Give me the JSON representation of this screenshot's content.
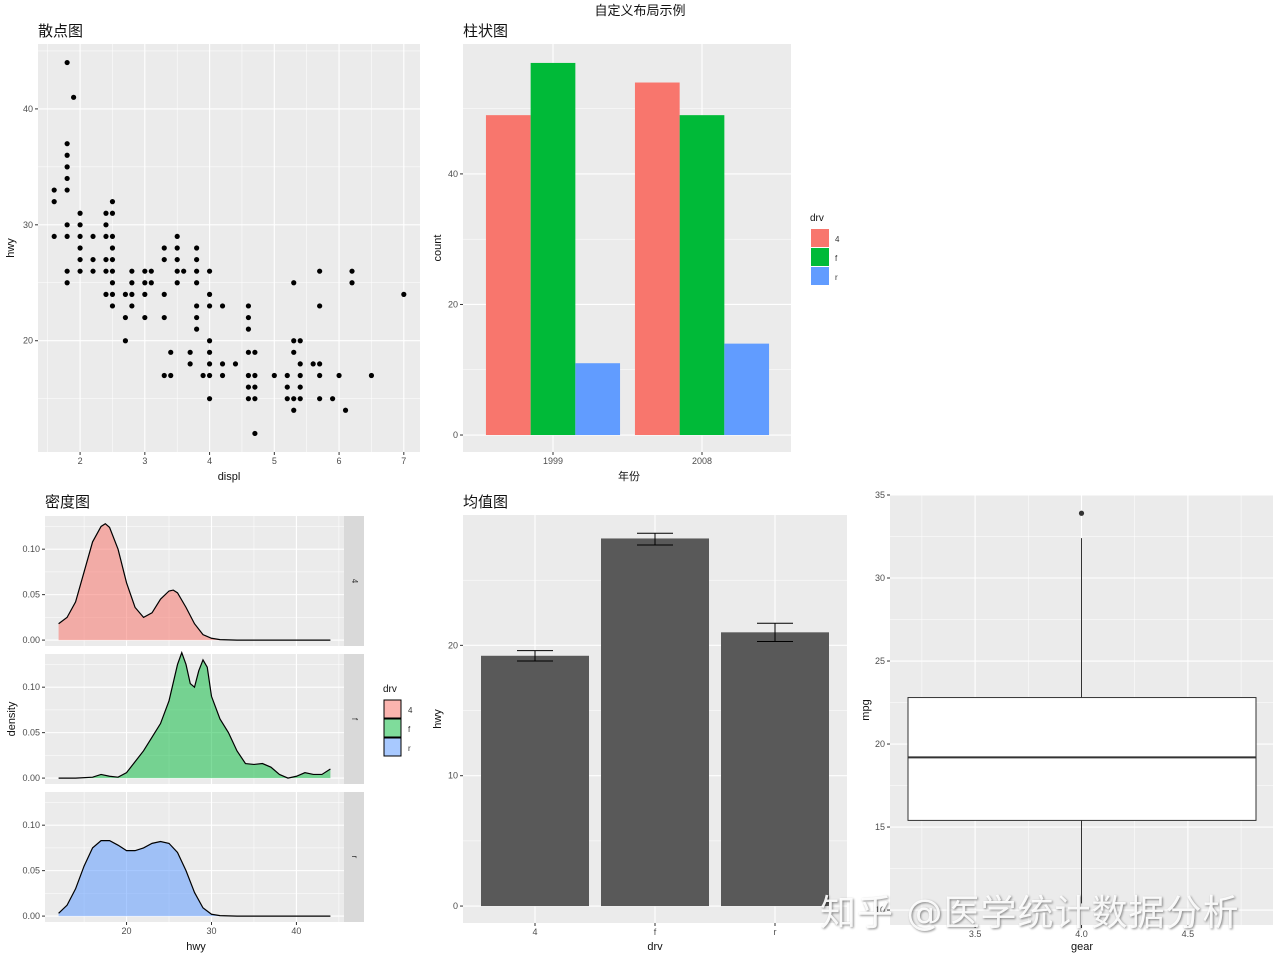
{
  "title": "自定义布局示例",
  "watermark": "知乎 @医学统计数据分析",
  "colors": {
    "panel_bg": "#EBEBEB",
    "grid": "#FFFFFF",
    "drv_4": "#F8766D",
    "drv_f": "#00BA38",
    "drv_r": "#619CFF",
    "mean_bar": "#595959",
    "strip_bg": "#D9D9D9"
  },
  "chart_data": [
    {
      "id": "scatter",
      "type": "scatter",
      "title": "散点图",
      "xlabel": "displ",
      "ylabel": "hwy",
      "xticks": [
        2,
        3,
        4,
        5,
        6,
        7
      ],
      "yticks": [
        20,
        30,
        40
      ],
      "xlim": [
        1.35,
        7.25
      ],
      "ylim": [
        10.4,
        45.6
      ],
      "grid": true,
      "points": [
        [
          1.8,
          44
        ],
        [
          1.9,
          41
        ],
        [
          1.8,
          37
        ],
        [
          1.8,
          36
        ],
        [
          1.8,
          35
        ],
        [
          1.8,
          34
        ],
        [
          1.8,
          33
        ],
        [
          1.6,
          33
        ],
        [
          1.6,
          32
        ],
        [
          2.5,
          32
        ],
        [
          2.0,
          31
        ],
        [
          2.4,
          31
        ],
        [
          2.5,
          31
        ],
        [
          1.8,
          30
        ],
        [
          2.0,
          30
        ],
        [
          2.4,
          30
        ],
        [
          1.6,
          29
        ],
        [
          1.8,
          29
        ],
        [
          2.0,
          29
        ],
        [
          2.2,
          29
        ],
        [
          2.4,
          29
        ],
        [
          2.5,
          29
        ],
        [
          3.5,
          29
        ],
        [
          2.0,
          28
        ],
        [
          2.5,
          28
        ],
        [
          3.3,
          28
        ],
        [
          3.5,
          28
        ],
        [
          3.8,
          28
        ],
        [
          2.0,
          27
        ],
        [
          2.2,
          27
        ],
        [
          2.4,
          27
        ],
        [
          2.5,
          27
        ],
        [
          3.3,
          27
        ],
        [
          3.5,
          27
        ],
        [
          3.8,
          27
        ],
        [
          1.8,
          26
        ],
        [
          2.0,
          26
        ],
        [
          2.2,
          26
        ],
        [
          2.4,
          26
        ],
        [
          2.5,
          26
        ],
        [
          2.8,
          26
        ],
        [
          3.0,
          26
        ],
        [
          3.1,
          26
        ],
        [
          3.5,
          26
        ],
        [
          3.6,
          26
        ],
        [
          3.8,
          26
        ],
        [
          4.0,
          26
        ],
        [
          5.7,
          26
        ],
        [
          6.2,
          26
        ],
        [
          1.8,
          25
        ],
        [
          2.5,
          25
        ],
        [
          2.8,
          25
        ],
        [
          3.0,
          25
        ],
        [
          3.1,
          25
        ],
        [
          3.5,
          25
        ],
        [
          3.8,
          25
        ],
        [
          5.3,
          25
        ],
        [
          6.2,
          25
        ],
        [
          2.4,
          24
        ],
        [
          2.5,
          24
        ],
        [
          2.7,
          24
        ],
        [
          2.8,
          24
        ],
        [
          3.0,
          24
        ],
        [
          3.3,
          24
        ],
        [
          4.0,
          24
        ],
        [
          7.0,
          24
        ],
        [
          2.5,
          23
        ],
        [
          2.8,
          23
        ],
        [
          3.8,
          23
        ],
        [
          4.0,
          23
        ],
        [
          4.2,
          23
        ],
        [
          4.6,
          23
        ],
        [
          5.7,
          23
        ],
        [
          2.7,
          22
        ],
        [
          3.0,
          22
        ],
        [
          3.3,
          22
        ],
        [
          3.8,
          22
        ],
        [
          4.6,
          22
        ],
        [
          3.8,
          21
        ],
        [
          4.6,
          21
        ],
        [
          2.7,
          20
        ],
        [
          4.0,
          20
        ],
        [
          5.3,
          20
        ],
        [
          5.4,
          20
        ],
        [
          3.4,
          19
        ],
        [
          3.7,
          19
        ],
        [
          4.0,
          19
        ],
        [
          4.6,
          19
        ],
        [
          4.7,
          19
        ],
        [
          5.3,
          19
        ],
        [
          3.7,
          18
        ],
        [
          4.0,
          18
        ],
        [
          4.2,
          18
        ],
        [
          4.4,
          18
        ],
        [
          5.4,
          18
        ],
        [
          5.6,
          18
        ],
        [
          5.7,
          18
        ],
        [
          3.3,
          17
        ],
        [
          3.4,
          17
        ],
        [
          3.9,
          17
        ],
        [
          4.0,
          17
        ],
        [
          4.2,
          17
        ],
        [
          4.6,
          17
        ],
        [
          4.7,
          17
        ],
        [
          5.0,
          17
        ],
        [
          5.2,
          17
        ],
        [
          5.4,
          17
        ],
        [
          5.7,
          17
        ],
        [
          6.0,
          17
        ],
        [
          6.5,
          17
        ],
        [
          4.6,
          16
        ],
        [
          4.7,
          16
        ],
        [
          5.2,
          16
        ],
        [
          5.4,
          16
        ],
        [
          4.0,
          15
        ],
        [
          4.6,
          15
        ],
        [
          4.7,
          15
        ],
        [
          5.2,
          15
        ],
        [
          5.3,
          15
        ],
        [
          5.4,
          15
        ],
        [
          5.7,
          15
        ],
        [
          5.9,
          15
        ],
        [
          5.3,
          14
        ],
        [
          6.1,
          14
        ],
        [
          4.7,
          12
        ]
      ]
    },
    {
      "id": "bar",
      "type": "bar",
      "title": "柱状图",
      "xlabel": "年份",
      "ylabel": "count",
      "categories": [
        "1999",
        "2008"
      ],
      "yticks": [
        0,
        20,
        40
      ],
      "ylim": [
        -2.6,
        59.9
      ],
      "legend": {
        "title": "drv",
        "position": "right",
        "entries": [
          "4",
          "f",
          "r"
        ]
      },
      "series": [
        {
          "name": "4",
          "values": [
            49,
            54
          ]
        },
        {
          "name": "f",
          "values": [
            57,
            49
          ]
        },
        {
          "name": "r",
          "values": [
            11,
            14
          ]
        }
      ]
    },
    {
      "id": "density",
      "type": "area",
      "title": "密度图",
      "xlabel": "hwy",
      "ylabel": "density",
      "xticks": [
        20,
        30,
        40
      ],
      "yticks": [
        0.0,
        0.05,
        0.1
      ],
      "ytick_labels": [
        "0.00",
        "0.05",
        "0.10"
      ],
      "xlim": [
        10.4,
        45.6
      ],
      "ylim": [
        -0.0065,
        0.1365
      ],
      "facets": [
        "4",
        "f",
        "r"
      ],
      "legend": {
        "title": "drv",
        "position": "right",
        "entries": [
          "4",
          "f",
          "r"
        ]
      },
      "series": [
        {
          "name": "4",
          "x": [
            12,
            13,
            14,
            15,
            16,
            17,
            17.5,
            18,
            19,
            20,
            21,
            22,
            23,
            24,
            25,
            25.5,
            26,
            27,
            28,
            29,
            30,
            31,
            33,
            36,
            40,
            44
          ],
          "y": [
            0.018,
            0.025,
            0.042,
            0.075,
            0.108,
            0.125,
            0.128,
            0.124,
            0.1,
            0.063,
            0.036,
            0.025,
            0.03,
            0.045,
            0.054,
            0.055,
            0.052,
            0.036,
            0.018,
            0.006,
            0.002,
            0.0005,
            0,
            0,
            0,
            0
          ]
        },
        {
          "name": "f",
          "x": [
            12,
            14,
            16,
            17,
            18,
            19,
            20,
            21,
            22,
            23,
            24,
            25,
            26,
            26.5,
            27,
            27.5,
            28,
            28.5,
            29,
            29.5,
            30,
            31,
            32,
            33,
            34,
            35,
            36,
            37,
            38,
            39,
            40,
            41,
            42,
            43,
            44
          ],
          "y": [
            0,
            0,
            0.001,
            0.004,
            0.002,
            0.001,
            0.006,
            0.018,
            0.03,
            0.045,
            0.06,
            0.085,
            0.125,
            0.138,
            0.125,
            0.104,
            0.1,
            0.118,
            0.13,
            0.122,
            0.09,
            0.065,
            0.05,
            0.03,
            0.016,
            0.015,
            0.016,
            0.012,
            0.004,
            0,
            0.002,
            0.006,
            0.004,
            0.004,
            0.01
          ]
        },
        {
          "name": "r",
          "x": [
            12,
            13,
            14,
            15,
            16,
            17,
            18,
            19,
            20,
            21,
            22,
            23,
            24,
            25,
            26,
            27,
            28,
            29,
            30,
            31,
            33,
            36,
            40,
            44
          ],
          "y": [
            0.003,
            0.012,
            0.03,
            0.055,
            0.075,
            0.083,
            0.083,
            0.078,
            0.072,
            0.072,
            0.075,
            0.08,
            0.082,
            0.08,
            0.07,
            0.05,
            0.026,
            0.009,
            0.002,
            0.0005,
            0,
            0,
            0,
            0
          ]
        }
      ]
    },
    {
      "id": "mean",
      "type": "bar",
      "title": "均值图",
      "xlabel": "drv",
      "ylabel": "hwy",
      "categories": [
        "4",
        "f",
        "r"
      ],
      "values": [
        19.2,
        28.2,
        21.0
      ],
      "error_low": [
        18.8,
        27.7,
        20.3
      ],
      "error_high": [
        19.6,
        28.6,
        21.7
      ],
      "yticks": [
        0,
        10,
        20
      ],
      "ylim": [
        -1.3,
        30.0
      ]
    },
    {
      "id": "box",
      "type": "box",
      "title": "",
      "xlabel": "gear",
      "ylabel": "mpg",
      "xticks": [
        3.5,
        4.0,
        4.5
      ],
      "xtick_labels": [
        "3.5",
        "4.0",
        "4.5"
      ],
      "yticks": [
        10,
        15,
        20,
        25,
        30,
        35
      ],
      "xlim": [
        3.1,
        4.9
      ],
      "ylim": [
        9.1,
        35.0
      ],
      "box": {
        "x": 4.0,
        "q1": 15.4,
        "median": 19.2,
        "q3": 22.8,
        "whisker_low": 10.4,
        "whisker_high": 32.4,
        "outliers": [
          33.9
        ]
      }
    }
  ]
}
